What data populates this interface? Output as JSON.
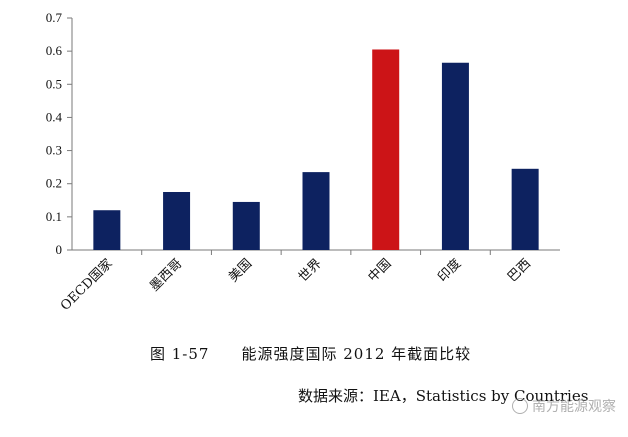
{
  "chart_data": {
    "type": "bar",
    "categories": [
      "OECD国家",
      "墨西哥",
      "美国",
      "世界",
      "中国",
      "印度",
      "巴西"
    ],
    "values": [
      0.12,
      0.175,
      0.145,
      0.235,
      0.605,
      0.565,
      0.245
    ],
    "ylim": [
      0,
      0.7
    ],
    "yticks": [
      "0",
      "0.1",
      "0.2",
      "0.3",
      "0.4",
      "0.5",
      "0.6",
      "0.7"
    ],
    "xlabel": "",
    "ylabel": "",
    "grid": false,
    "colors": {
      "default": "#0d2260",
      "highlight": "#cc1417",
      "highlight_category": "中国"
    }
  },
  "caption": {
    "figure_number": "图 1-57",
    "text": "能源强度国际 2012 年截面比较"
  },
  "source": {
    "text": "数据来源：IEA，Statistics by Countries"
  },
  "watermark": {
    "text": "南方能源观察",
    "icon": "wechat-icon"
  }
}
